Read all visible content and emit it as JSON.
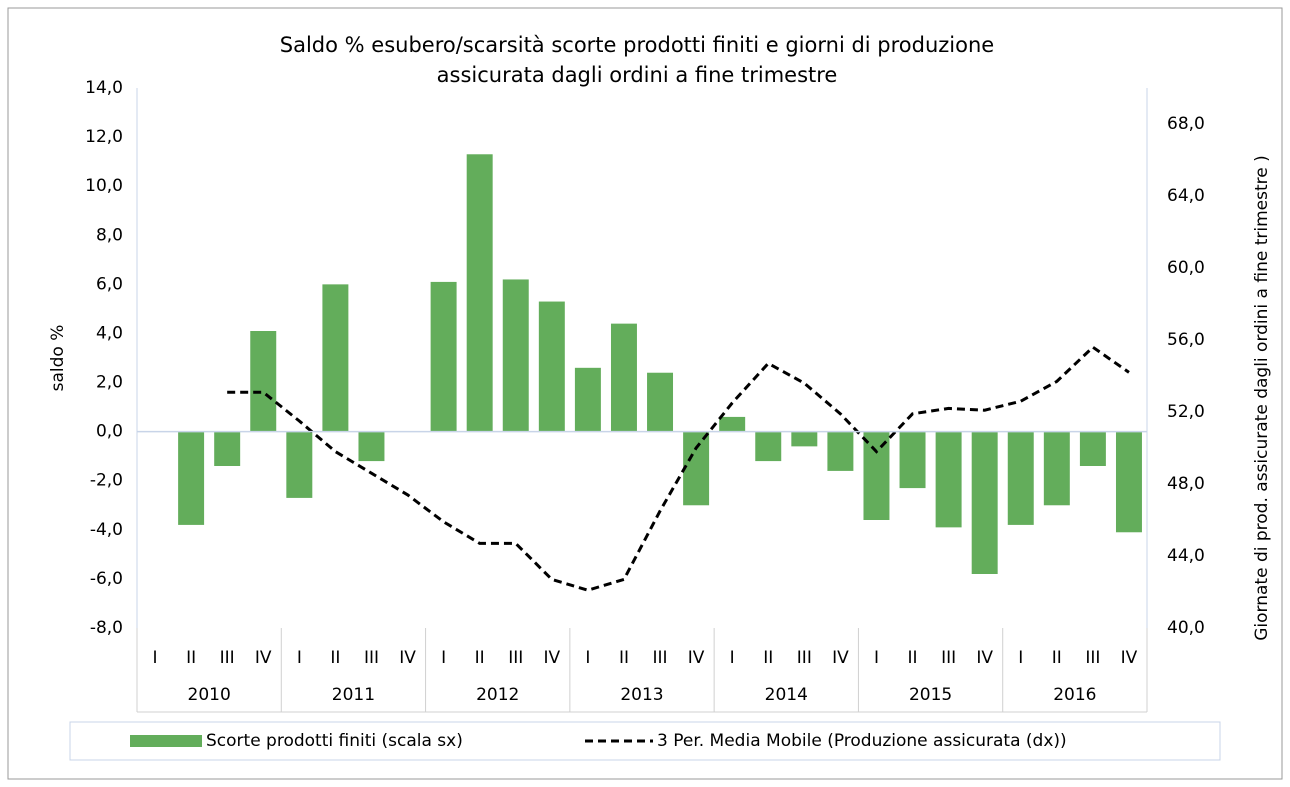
{
  "chart_data": {
    "type": "bar_line",
    "title": [
      "Saldo % esubero/scarsità scorte prodotti finiti e giorni di produzione",
      "assicurata  dagli ordini a fine trimestre"
    ],
    "ylabel": "saldo %",
    "y2label": "Giornate di prod. assicurate dagli ordini a fine trimestre )",
    "categories": [
      "I",
      "II",
      "III",
      "IV",
      "I",
      "II",
      "III",
      "IV",
      "I",
      "II",
      "III",
      "IV",
      "I",
      "II",
      "III",
      "IV",
      "I",
      "II",
      "III",
      "IV",
      "I",
      "II",
      "III",
      "IV",
      "I",
      "II",
      "III",
      "IV"
    ],
    "category_groups": [
      "2010",
      "2011",
      "2012",
      "2013",
      "2014",
      "2015",
      "2016"
    ],
    "series": [
      {
        "name": "Scorte prodotti finiti (scala sx)",
        "type": "bar",
        "color": "#63ad5b",
        "values": [
          null,
          -3.8,
          -1.4,
          4.1,
          -2.7,
          6.0,
          -1.2,
          null,
          6.1,
          11.3,
          6.2,
          5.3,
          2.6,
          4.4,
          2.4,
          -3.0,
          0.6,
          -1.2,
          -0.6,
          -1.6,
          -3.6,
          -2.3,
          -3.9,
          -5.8,
          -3.8,
          -3.0,
          -1.4,
          -4.1
        ]
      },
      {
        "name": "3 Per. Media Mobile (Produzione assicurata (dx))",
        "type": "line",
        "axis": "y2",
        "color": "#000000",
        "dashed": true,
        "values": [
          null,
          null,
          53.1,
          53.1,
          51.5,
          49.8,
          48.6,
          47.4,
          45.9,
          44.7,
          44.7,
          42.7,
          42.1,
          42.7,
          46.5,
          50.0,
          52.5,
          54.7,
          53.6,
          51.9,
          49.8,
          51.9,
          52.2,
          52.1,
          52.6,
          53.7,
          55.6,
          54.2
        ]
      }
    ],
    "ylim": [
      -8,
      14
    ],
    "yticks": [
      {
        "value": -8,
        "label": "-8,0"
      },
      {
        "value": -6,
        "label": "-6,0"
      },
      {
        "value": -4,
        "label": "-4,0"
      },
      {
        "value": -2,
        "label": "-2,0"
      },
      {
        "value": 0,
        "label": "0,0"
      },
      {
        "value": 2,
        "label": "2,0"
      },
      {
        "value": 4,
        "label": "4,0"
      },
      {
        "value": 6,
        "label": "6,0"
      },
      {
        "value": 8,
        "label": "8,0"
      },
      {
        "value": 10,
        "label": "10,0"
      },
      {
        "value": 12,
        "label": "12,0"
      },
      {
        "value": 14,
        "label": "14,0"
      }
    ],
    "y2lim": [
      40,
      70
    ],
    "y2ticks": [
      {
        "value": 40,
        "label": "40,0"
      },
      {
        "value": 44,
        "label": "44,0"
      },
      {
        "value": 48,
        "label": "48,0"
      },
      {
        "value": 52,
        "label": "52,0"
      },
      {
        "value": 56,
        "label": "56,0"
      },
      {
        "value": 60,
        "label": "60,0"
      },
      {
        "value": 64,
        "label": "64,0"
      },
      {
        "value": 68,
        "label": "68,0"
      }
    ],
    "legend": "bottom"
  }
}
